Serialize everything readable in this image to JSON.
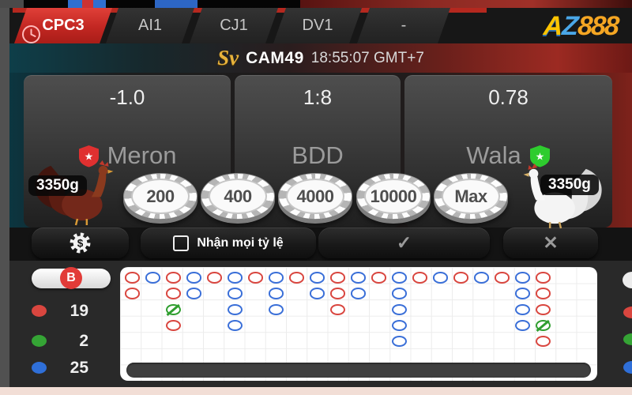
{
  "tabs": {
    "items": [
      {
        "label": "CPC3",
        "active": true
      },
      {
        "label": "AI1",
        "active": false
      },
      {
        "label": "CJ1",
        "active": false
      },
      {
        "label": "DV1",
        "active": false
      },
      {
        "label": "-",
        "active": false
      }
    ]
  },
  "logo": {
    "a": "A",
    "z": "Z",
    "suffix": "888"
  },
  "banner": {
    "provider": "Sv",
    "camera": "CAM49",
    "time": "18:55:07 GMT+7"
  },
  "panels": {
    "meron": {
      "odds": "-1.0",
      "label": "Meron",
      "weight": "3350g"
    },
    "bdd": {
      "odds": "1:8",
      "label": "BDD"
    },
    "wala": {
      "odds": "0.78",
      "label": "Wala",
      "weight": "3350g"
    }
  },
  "icons": {
    "star": "★"
  },
  "chips": [
    "200",
    "400",
    "4000",
    "10000",
    "Max"
  ],
  "controls": {
    "coin_glyph": "$",
    "all_rate_label": "Nhận mọi tỷ lệ",
    "confirm_glyph": "✓",
    "cancel_glyph": "✕"
  },
  "board": {
    "history_label": "B",
    "legend": [
      {
        "name": "meron-count",
        "color": "#d9463f",
        "count": "19"
      },
      {
        "name": "draw-count",
        "color": "#35a435",
        "count": "2"
      },
      {
        "name": "wala-count",
        "color": "#2f6fd8",
        "count": "25"
      }
    ],
    "columns": [
      [
        "R",
        "R"
      ],
      [
        "B"
      ],
      [
        "R",
        "R",
        "G",
        "R"
      ],
      [
        "B",
        "B"
      ],
      [
        "R"
      ],
      [
        "B",
        "B",
        "B",
        "B"
      ],
      [
        "R"
      ],
      [
        "B",
        "B",
        "B"
      ],
      [
        "R"
      ],
      [
        "B",
        "B"
      ],
      [
        "R",
        "R",
        "R"
      ],
      [
        "B",
        "B"
      ],
      [
        "R"
      ],
      [
        "B",
        "B",
        "B",
        "B",
        "B"
      ],
      [
        "R"
      ],
      [
        "B"
      ],
      [
        "R"
      ],
      [
        "B"
      ],
      [
        "R"
      ],
      [
        "B",
        "B",
        "B",
        "B"
      ],
      [
        "R",
        "R",
        "R",
        "G",
        "R"
      ]
    ]
  },
  "colors": {
    "red": "#d9463f",
    "blue": "#3a6fd8",
    "green": "#2f9e2f",
    "accent_red": "#c22722"
  }
}
